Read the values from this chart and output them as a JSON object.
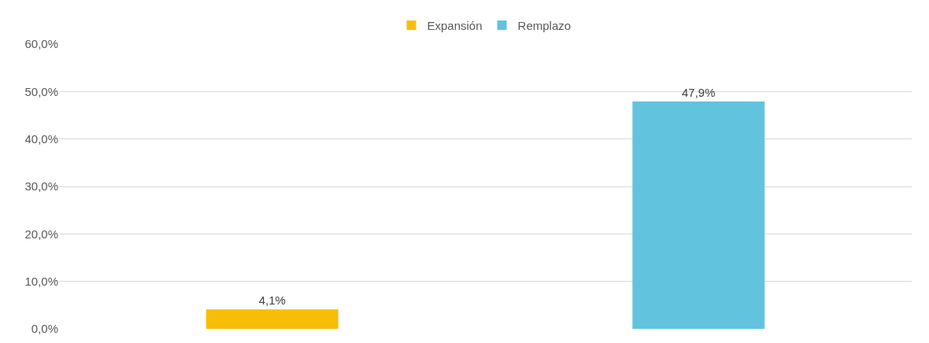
{
  "chart_data": {
    "type": "bar",
    "categories": [
      null,
      null
    ],
    "series": [
      {
        "name": "Expansión",
        "color": "#f7be07",
        "values": [
          4.1,
          null
        ],
        "value_labels": [
          "4,1%",
          null
        ]
      },
      {
        "name": "Remplazo",
        "color": "#62c3de",
        "values": [
          null,
          47.9
        ],
        "value_labels": [
          null,
          "47,9%"
        ]
      }
    ],
    "ylim": [
      0,
      60
    ],
    "yticks": [
      {
        "value": 0,
        "label": "0,0%"
      },
      {
        "value": 10,
        "label": "10,0%"
      },
      {
        "value": 20,
        "label": "20,0%"
      },
      {
        "value": 30,
        "label": "30,0%"
      },
      {
        "value": 40,
        "label": "40,0%"
      },
      {
        "value": 50,
        "label": "50,0%"
      },
      {
        "value": 60,
        "label": "60,0%"
      }
    ],
    "grid": "y",
    "legend": "top",
    "tick_labels": "y"
  }
}
